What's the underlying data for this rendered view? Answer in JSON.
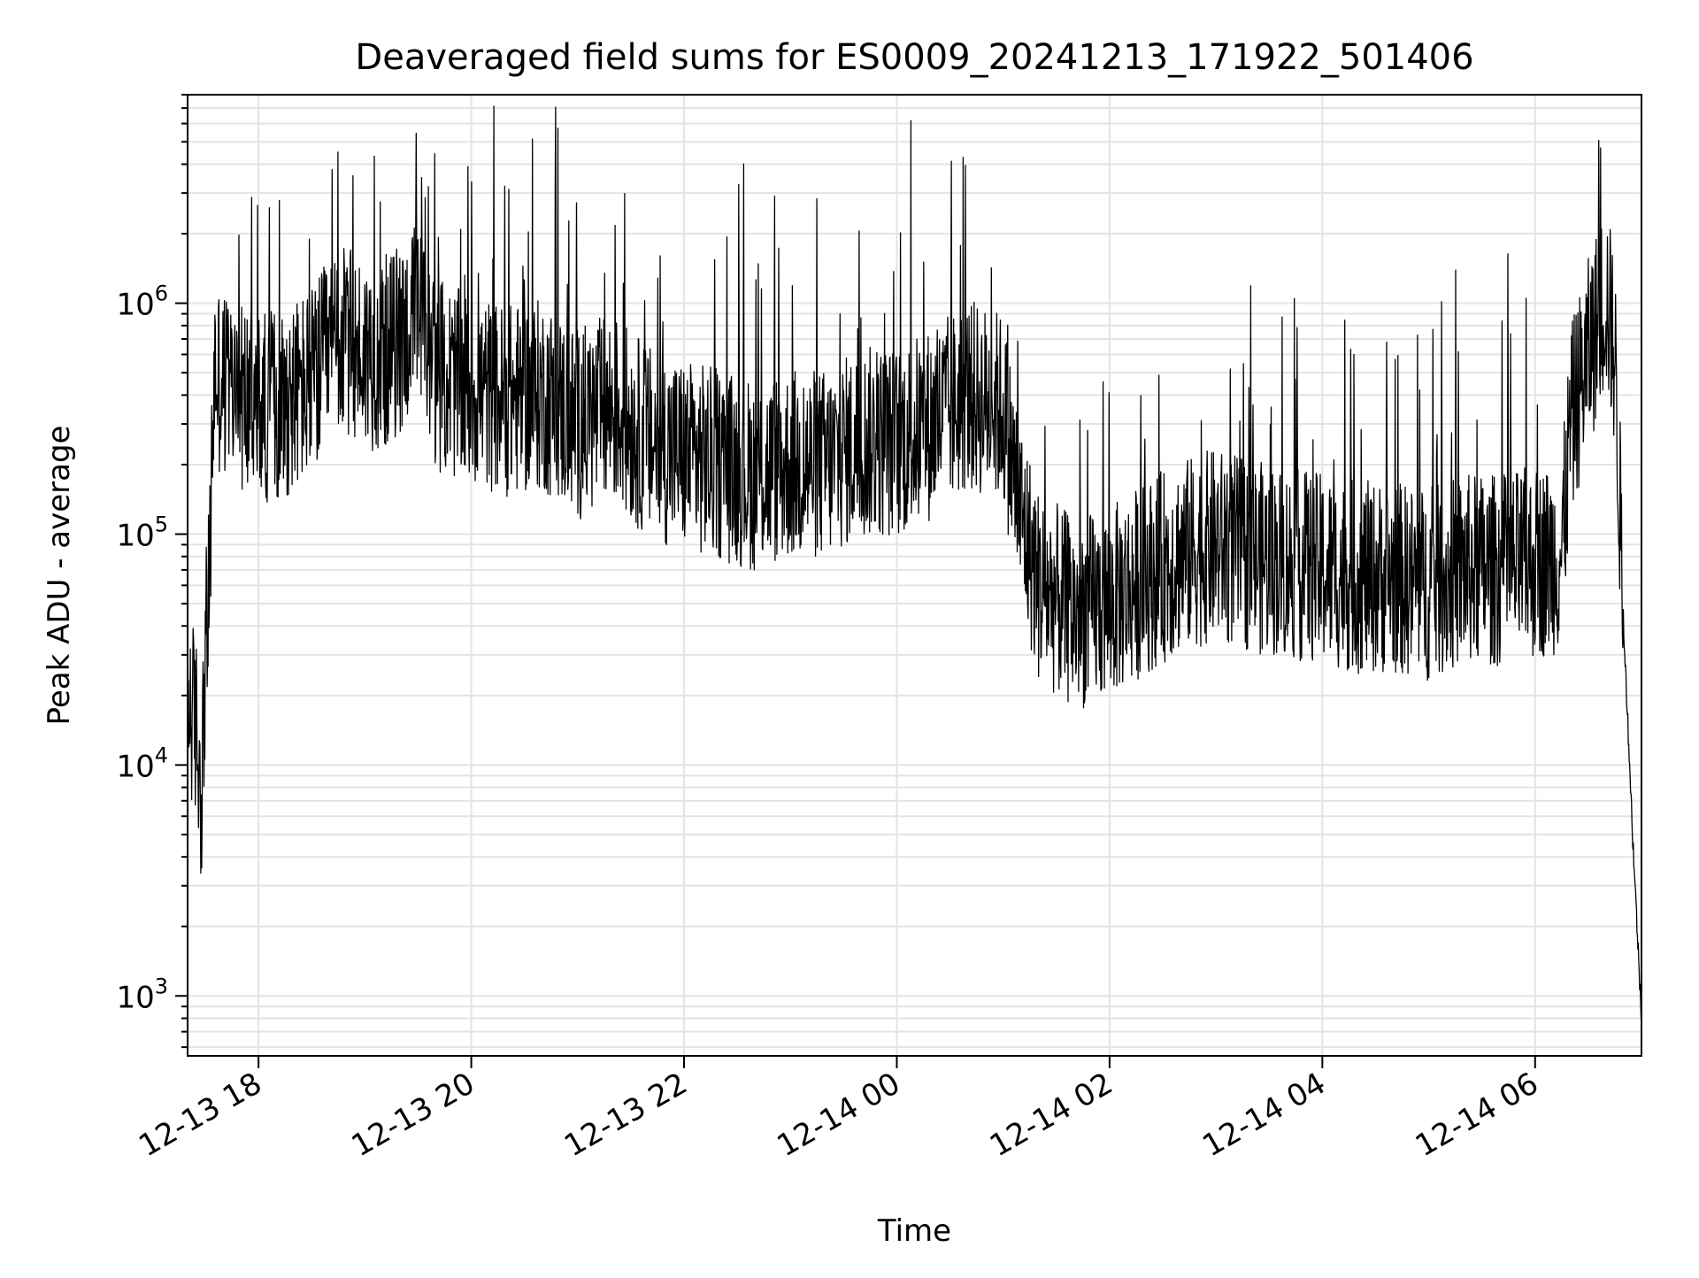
{
  "chart_data": {
    "type": "line",
    "title": "Deaveraged field sums for ES0009_20241213_171922_501406",
    "xlabel": "Time",
    "ylabel": "Peak ADU - average",
    "y_scale": "log",
    "x_range": [
      "2024-12-13T17:20",
      "2024-12-14T07:00"
    ],
    "ylim": [
      550,
      8000000
    ],
    "x_ticks": [
      "12-13 18",
      "12-13 20",
      "12-13 22",
      "12-14 00",
      "12-14 02",
      "12-14 04",
      "12-14 06"
    ],
    "y_ticks": [
      {
        "base": "10",
        "exp": "3"
      },
      {
        "base": "10",
        "exp": "4"
      },
      {
        "base": "10",
        "exp": "5"
      },
      {
        "base": "10",
        "exp": "6"
      }
    ],
    "grid": true,
    "line_color": "#000000",
    "series": [
      {
        "x": [
          "2024-12-13T17:20",
          "2024-12-13T17:25",
          "2024-12-13T17:28",
          "2024-12-13T17:30",
          "2024-12-13T17:32",
          "2024-12-13T17:35",
          "2024-12-13T17:40",
          "2024-12-13T17:50",
          "2024-12-13T18:00",
          "2024-12-13T18:15",
          "2024-12-13T18:30",
          "2024-12-13T18:45",
          "2024-12-13T19:00",
          "2024-12-13T19:10",
          "2024-12-13T19:20",
          "2024-12-13T19:30",
          "2024-12-13T19:40",
          "2024-12-13T19:50",
          "2024-12-13T20:00",
          "2024-12-13T20:20",
          "2024-12-13T20:40",
          "2024-12-13T21:00",
          "2024-12-13T21:20",
          "2024-12-13T21:40",
          "2024-12-13T22:00",
          "2024-12-13T22:20",
          "2024-12-13T22:40",
          "2024-12-13T23:00",
          "2024-12-13T23:20",
          "2024-12-13T23:40",
          "2024-12-14T00:00",
          "2024-12-14T00:20",
          "2024-12-14T00:40",
          "2024-12-14T01:00",
          "2024-12-14T01:10",
          "2024-12-14T01:20",
          "2024-12-14T01:40",
          "2024-12-14T02:00",
          "2024-12-14T02:20",
          "2024-12-14T02:40",
          "2024-12-14T03:00",
          "2024-12-14T03:20",
          "2024-12-14T03:40",
          "2024-12-14T04:00",
          "2024-12-14T04:20",
          "2024-12-14T04:40",
          "2024-12-14T05:00",
          "2024-12-14T05:20",
          "2024-12-14T05:40",
          "2024-12-14T06:00",
          "2024-12-14T06:15",
          "2024-12-14T06:20",
          "2024-12-14T06:30",
          "2024-12-14T06:40",
          "2024-12-14T06:45",
          "2024-12-14T06:50",
          "2024-12-14T06:55",
          "2024-12-14T07:00"
        ],
        "y": [
          20000,
          14000,
          8000,
          30000,
          50000,
          500000,
          450000,
          400000,
          350000,
          380000,
          450000,
          700000,
          600000,
          600000,
          700000,
          900000,
          500000,
          450000,
          420000,
          380000,
          400000,
          300000,
          350000,
          250000,
          220000,
          200000,
          180000,
          200000,
          200000,
          250000,
          250000,
          300000,
          400000,
          350000,
          120000,
          60000,
          45000,
          50000,
          65000,
          80000,
          90000,
          80000,
          75000,
          70000,
          65000,
          65000,
          60000,
          70000,
          70000,
          75000,
          80000,
          300000,
          600000,
          1100000,
          600000,
          40000,
          5000,
          800
        ]
      }
    ]
  }
}
